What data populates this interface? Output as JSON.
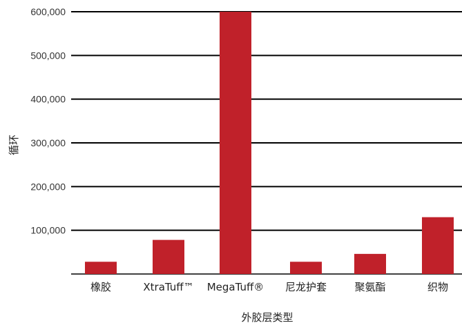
{
  "chart_data": {
    "type": "bar",
    "categories": [
      "橡胶",
      "XtraTuff™",
      "MegaTuff®",
      "尼龙护套",
      "聚氨酯",
      "织物"
    ],
    "values": [
      28000,
      78000,
      600000,
      28000,
      46000,
      130000
    ],
    "xlabel": "外胶层类型",
    "ylabel": "循环",
    "ylim": [
      0,
      600000
    ],
    "yticks": [
      0,
      100000,
      200000,
      300000,
      400000,
      500000,
      600000
    ],
    "ytick_labels": [
      "",
      "100,000",
      "200,000",
      "300,000",
      "400,000",
      "500,000",
      "600,000"
    ],
    "grid": true,
    "legend": "none",
    "bar_color": "#c0212a",
    "grid_color": "#000000"
  }
}
